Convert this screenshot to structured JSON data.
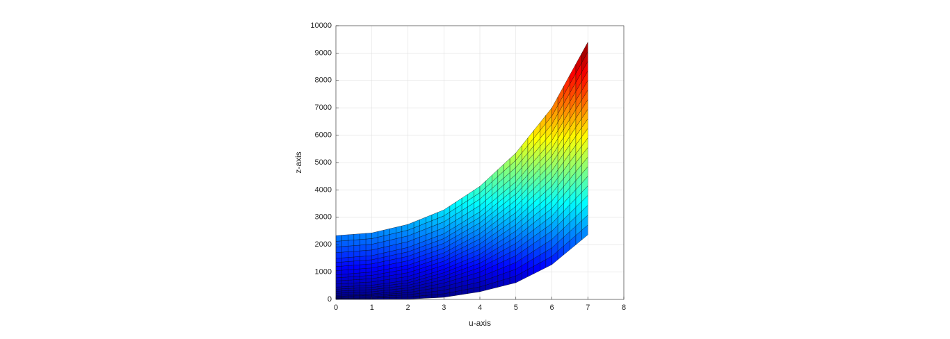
{
  "chart_data": {
    "type": "surface",
    "x_label": "u-axis",
    "z_label": "z-axis",
    "x": [
      0,
      1,
      2,
      3,
      4,
      5,
      6,
      7
    ],
    "series": [
      {
        "values": [
          0,
          0,
          10,
          76,
          280,
          610,
          1270,
          2360
        ]
      },
      {
        "values": [
          150,
          200,
          330,
          600,
          1000,
          1600,
          2500,
          3800
        ]
      },
      {
        "values": [
          450,
          520,
          700,
          1100,
          1650,
          2500,
          3600,
          5200
        ]
      },
      {
        "values": [
          900,
          1000,
          1250,
          1700,
          2400,
          3400,
          4700,
          6600
        ]
      },
      {
        "values": [
          1500,
          1600,
          1900,
          2400,
          3200,
          4300,
          5800,
          8000
        ]
      },
      {
        "values": [
          2330,
          2430,
          2740,
          3270,
          4130,
          5350,
          7000,
          9400
        ]
      }
    ],
    "colormap": "jet",
    "xlim": [
      0,
      8
    ],
    "xticks": [
      0,
      1,
      2,
      3,
      4,
      5,
      6,
      7,
      8
    ],
    "ylim": [
      0,
      10000
    ],
    "yticks": [
      0,
      1000,
      2000,
      3000,
      4000,
      5000,
      6000,
      7000,
      8000,
      9000,
      10000
    ],
    "grid": true
  }
}
